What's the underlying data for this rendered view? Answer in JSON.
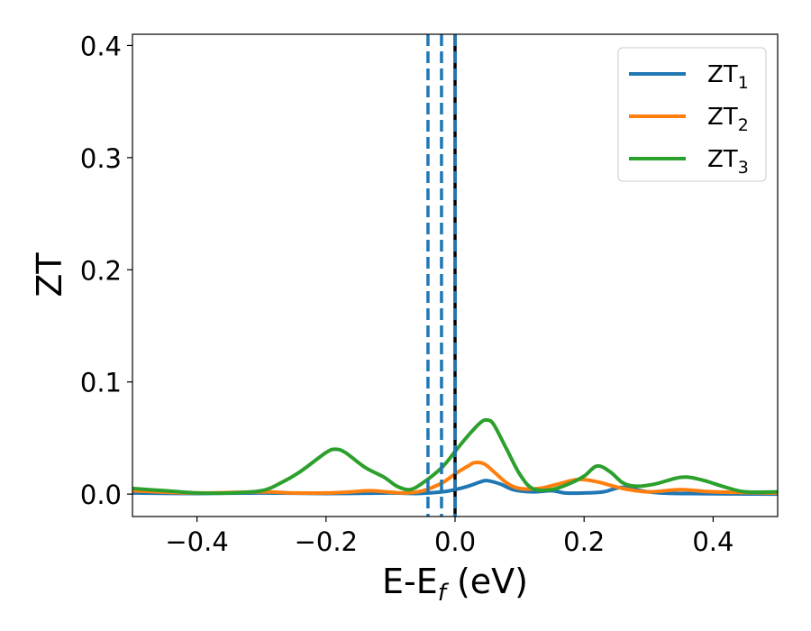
{
  "chart_data": {
    "type": "line",
    "xlabel": {
      "main": "E-E",
      "sub": "f",
      "suffix": " (eV)"
    },
    "ylabel": "ZT",
    "xlim": [
      -0.5,
      0.5
    ],
    "ylim": [
      -0.02,
      0.41
    ],
    "x_ticks": [
      -0.4,
      -0.2,
      0.0,
      0.2,
      0.4
    ],
    "x_tick_labels": [
      "−0.4",
      "−0.2",
      "0.0",
      "0.2",
      "0.4"
    ],
    "y_ticks": [
      0.0,
      0.1,
      0.2,
      0.3,
      0.4
    ],
    "y_tick_labels": [
      "0.0",
      "0.1",
      "0.2",
      "0.3",
      "0.4"
    ],
    "legend_position": "top-right",
    "grid": false,
    "series": [
      {
        "name": "ZT",
        "name_sub": "1",
        "color": "#1f77b4",
        "points": [
          [
            -0.5,
            0.001
          ],
          [
            -0.4,
            0.0005
          ],
          [
            -0.3,
            0.001
          ],
          [
            -0.2,
            0.0005
          ],
          [
            -0.1,
            0.001
          ],
          [
            -0.06,
            0.0005
          ],
          [
            -0.02,
            0.002
          ],
          [
            0.0,
            0.004
          ],
          [
            0.02,
            0.007
          ],
          [
            0.04,
            0.011
          ],
          [
            0.05,
            0.012
          ],
          [
            0.07,
            0.009
          ],
          [
            0.09,
            0.004
          ],
          [
            0.12,
            0.002
          ],
          [
            0.15,
            0.003
          ],
          [
            0.17,
            0.001
          ],
          [
            0.2,
            0.001
          ],
          [
            0.23,
            0.002
          ],
          [
            0.26,
            0.006
          ],
          [
            0.3,
            0.002
          ],
          [
            0.35,
            0.0005
          ],
          [
            0.5,
            0.0
          ]
        ]
      },
      {
        "name": "ZT",
        "name_sub": "2",
        "color": "#ff7f0e",
        "points": [
          [
            -0.5,
            0.003
          ],
          [
            -0.4,
            0.001
          ],
          [
            -0.3,
            0.002
          ],
          [
            -0.25,
            0.001
          ],
          [
            -0.2,
            0.001
          ],
          [
            -0.16,
            0.002
          ],
          [
            -0.13,
            0.003
          ],
          [
            -0.08,
            0.001
          ],
          [
            -0.05,
            0.003
          ],
          [
            -0.02,
            0.01
          ],
          [
            0.0,
            0.018
          ],
          [
            0.02,
            0.025
          ],
          [
            0.03,
            0.028
          ],
          [
            0.045,
            0.027
          ],
          [
            0.06,
            0.02
          ],
          [
            0.08,
            0.01
          ],
          [
            0.1,
            0.005
          ],
          [
            0.13,
            0.005
          ],
          [
            0.16,
            0.009
          ],
          [
            0.19,
            0.013
          ],
          [
            0.22,
            0.011
          ],
          [
            0.26,
            0.005
          ],
          [
            0.3,
            0.002
          ],
          [
            0.35,
            0.004
          ],
          [
            0.4,
            0.002
          ],
          [
            0.5,
            0.001
          ]
        ]
      },
      {
        "name": "ZT",
        "name_sub": "3",
        "color": "#2ca02c",
        "points": [
          [
            -0.5,
            0.005
          ],
          [
            -0.45,
            0.003
          ],
          [
            -0.4,
            0.001
          ],
          [
            -0.35,
            0.001
          ],
          [
            -0.3,
            0.003
          ],
          [
            -0.27,
            0.01
          ],
          [
            -0.24,
            0.02
          ],
          [
            -0.2,
            0.037
          ],
          [
            -0.185,
            0.04
          ],
          [
            -0.17,
            0.037
          ],
          [
            -0.14,
            0.024
          ],
          [
            -0.11,
            0.015
          ],
          [
            -0.09,
            0.007
          ],
          [
            -0.07,
            0.004
          ],
          [
            -0.05,
            0.01
          ],
          [
            -0.02,
            0.024
          ],
          [
            0.0,
            0.038
          ],
          [
            0.02,
            0.052
          ],
          [
            0.04,
            0.064
          ],
          [
            0.05,
            0.066
          ],
          [
            0.06,
            0.062
          ],
          [
            0.08,
            0.04
          ],
          [
            0.1,
            0.018
          ],
          [
            0.12,
            0.005
          ],
          [
            0.15,
            0.004
          ],
          [
            0.18,
            0.01
          ],
          [
            0.2,
            0.016
          ],
          [
            0.22,
            0.025
          ],
          [
            0.24,
            0.02
          ],
          [
            0.26,
            0.01
          ],
          [
            0.28,
            0.007
          ],
          [
            0.31,
            0.009
          ],
          [
            0.35,
            0.015
          ],
          [
            0.38,
            0.013
          ],
          [
            0.42,
            0.006
          ],
          [
            0.45,
            0.002
          ],
          [
            0.5,
            0.002
          ]
        ]
      }
    ],
    "vlines": [
      {
        "x": -0.042,
        "color": "#1f77b4",
        "style": "dashed"
      },
      {
        "x": -0.021,
        "color": "#1f77b4",
        "style": "dashed"
      },
      {
        "x": 0.0,
        "color": "#000000",
        "style": "solid"
      },
      {
        "x": 0.0,
        "color": "#1f77b4",
        "style": "dashed"
      }
    ]
  }
}
